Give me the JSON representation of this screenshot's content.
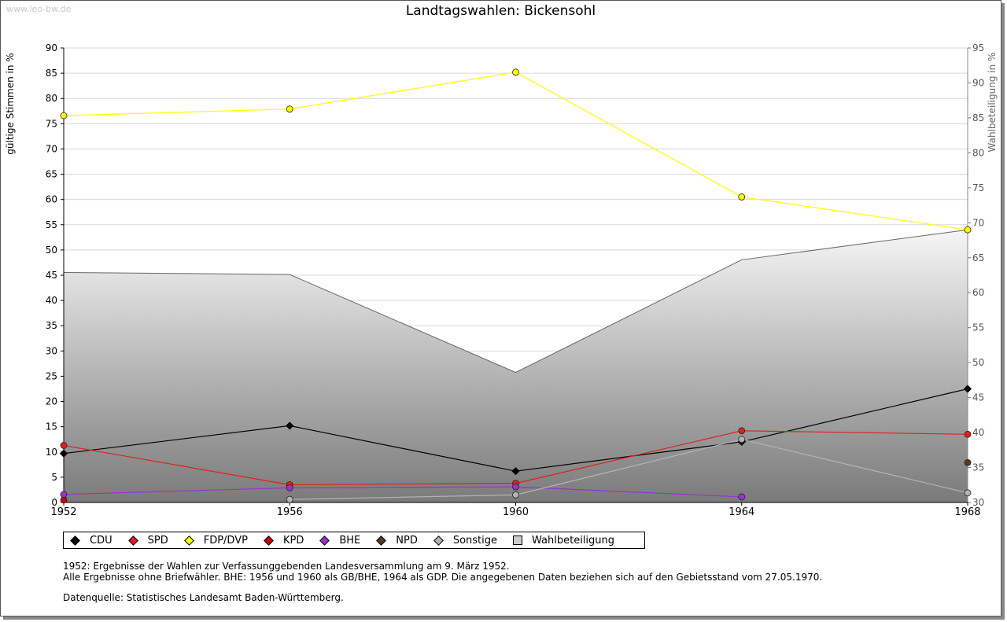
{
  "watermark": "www.leo-bw.de",
  "chart_data": {
    "type": "line",
    "title": "Landtagswahlen: Bickensohl",
    "ylabel": "gültige Stimmen in %",
    "y2label": "Wahlbeteiligung in %",
    "x": [
      1952,
      1956,
      1960,
      1964,
      1968
    ],
    "ylim": [
      0,
      90
    ],
    "y2lim": [
      30,
      95
    ],
    "yticks": [
      0,
      5,
      10,
      15,
      20,
      25,
      30,
      35,
      40,
      45,
      50,
      55,
      60,
      65,
      70,
      75,
      80,
      85,
      90
    ],
    "y2ticks": [
      30,
      35,
      40,
      45,
      50,
      55,
      60,
      65,
      70,
      75,
      80,
      85,
      90,
      95
    ],
    "grid": true,
    "legend_position": "bottom",
    "series": [
      {
        "name": "CDU",
        "color": "#000000",
        "values": [
          9.7,
          15.2,
          6.2,
          12.0,
          22.5
        ],
        "axis": "left"
      },
      {
        "name": "SPD",
        "color": "#e02020",
        "values": [
          11.3,
          3.5,
          3.8,
          14.2,
          13.5
        ],
        "axis": "left"
      },
      {
        "name": "FDP/DVP",
        "color": "#ffff00",
        "values": [
          76.6,
          77.9,
          85.2,
          60.5,
          54.0
        ],
        "axis": "left"
      },
      {
        "name": "KPD",
        "color": "#cc0000",
        "values": [
          0.5,
          null,
          null,
          null,
          null
        ],
        "axis": "left"
      },
      {
        "name": "BHE",
        "color": "#9933cc",
        "values": [
          1.6,
          2.9,
          3.1,
          1.1,
          null
        ],
        "axis": "left"
      },
      {
        "name": "NPD",
        "color": "#5a3a20",
        "values": [
          null,
          null,
          null,
          null,
          7.9
        ],
        "axis": "left"
      },
      {
        "name": "Sonstige",
        "color": "#b4b4b4",
        "values": [
          null,
          0.6,
          1.5,
          12.5,
          1.9
        ],
        "axis": "left"
      },
      {
        "name": "Wahlbeteiligung",
        "color": "#808080",
        "values": [
          62.9,
          62.6,
          48.6,
          64.7,
          69.0
        ],
        "axis": "right",
        "kind": "area"
      }
    ]
  },
  "notes": {
    "line1": "1952: Ergebnisse der Wahlen zur Verfassunggebenden Landesversammlung am 9. März 1952.",
    "line2": "Alle Ergebnisse ohne Briefwähler. BHE: 1956 und 1960 als GB/BHE, 1964 als GDP. Die angegebenen Daten beziehen sich auf den Gebietsstand vom 27.05.1970.",
    "source": "Datenquelle: Statistisches Landesamt Baden-Württemberg."
  }
}
